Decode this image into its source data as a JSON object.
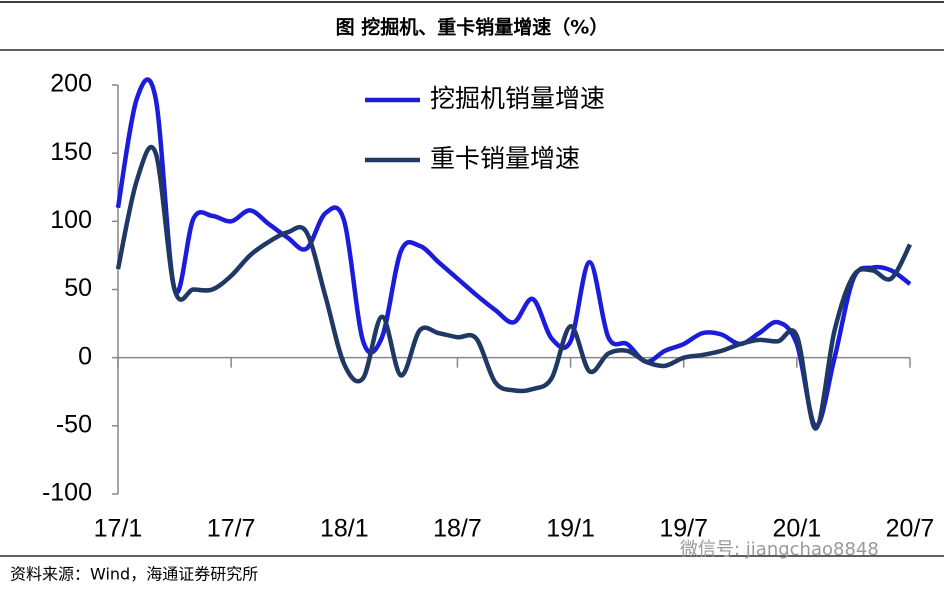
{
  "chart_data": {
    "type": "line",
    "title": "图  挖掘机、重卡销量增速（%）",
    "source": "资料来源：Wind，海通证券研究所",
    "watermark": "微信号: jiangchao8848",
    "categories": [
      "17/1",
      null,
      null,
      null,
      null,
      null,
      "17/7",
      null,
      null,
      null,
      null,
      null,
      "18/1",
      null,
      null,
      null,
      null,
      null,
      "18/7",
      null,
      null,
      null,
      null,
      null,
      "19/1",
      null,
      null,
      null,
      null,
      null,
      "19/7",
      null,
      null,
      null,
      null,
      null,
      "20/1",
      null,
      null,
      null,
      null,
      null,
      "20/7"
    ],
    "series": [
      {
        "name": "挖掘机销量增速",
        "color": "#1c1cdb",
        "values": [
          110,
          190,
          190,
          50,
          102,
          104,
          100,
          108,
          98,
          88,
          80,
          106,
          100,
          12,
          15,
          78,
          82,
          70,
          58,
          46,
          35,
          26,
          43,
          14,
          12,
          70,
          15,
          10,
          -3,
          5,
          10,
          18,
          17,
          10,
          18,
          26,
          10,
          -50,
          0,
          58,
          66,
          64,
          54
        ]
      },
      {
        "name": "重卡销量增速",
        "color": "#1f3864",
        "values": [
          65,
          130,
          150,
          50,
          50,
          50,
          60,
          75,
          85,
          92,
          92,
          45,
          -5,
          -15,
          30,
          -13,
          20,
          18,
          15,
          14,
          -18,
          -24,
          -23,
          -15,
          23,
          -10,
          3,
          5,
          -3,
          -6,
          0,
          2,
          5,
          10,
          13,
          12,
          16,
          -52,
          20,
          60,
          64,
          58,
          83
        ]
      }
    ],
    "ylim": [
      -100,
      200
    ],
    "yticks": [
      -100,
      -50,
      0,
      50,
      100,
      150,
      200
    ],
    "legend": "top-center"
  }
}
